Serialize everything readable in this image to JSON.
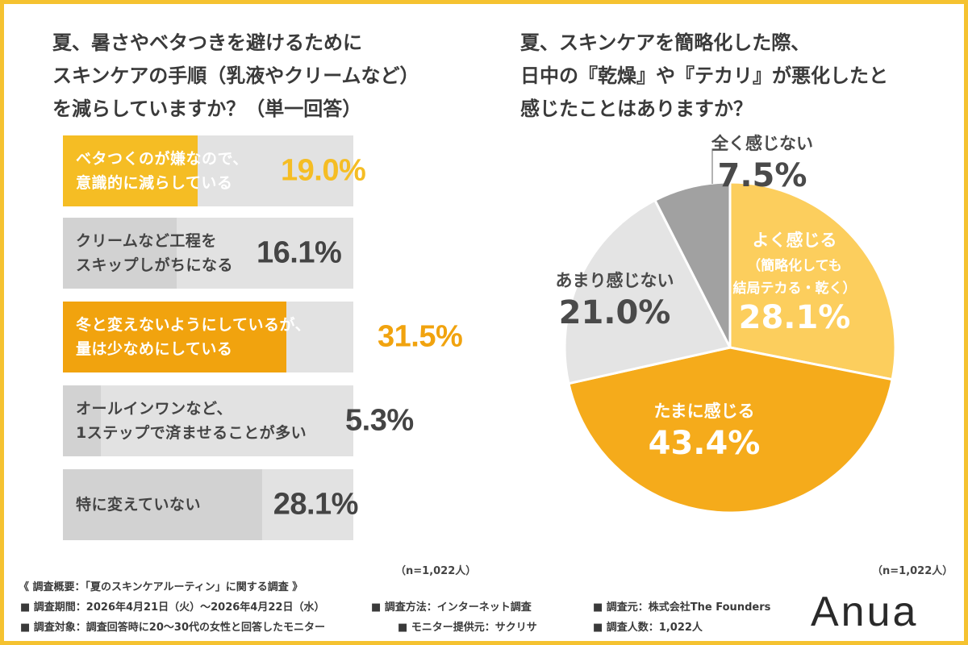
{
  "left_chart": {
    "title_lines": [
      "夏、暑さやベタつきを避けるために",
      "スキンケアの手順（乳液やクリームなど）",
      "を減らしていますか？（単一回答）"
    ],
    "n_note": "（n=1,022人）"
  },
  "right_chart": {
    "title_lines": [
      "夏、スキンケアを簡略化した際、",
      "日中の『乾燥』や『テカリ』が悪化したと",
      "感じたことはありますか？"
    ],
    "n_note": "（n=1,022人）"
  },
  "chart_data": [
    {
      "type": "bar",
      "orientation": "horizontal",
      "categories": [
        "ベタつくのが嫌なので、\n意識的に減らしている",
        "クリームなど工程を\nスキップしがちになる",
        "冬と変えないようにしているが、\n量は少なめにしている",
        "オールインワンなど、\n1ステップで済ませることが多い",
        "特に変えていない"
      ],
      "values": [
        19.0,
        16.1,
        31.5,
        5.3,
        28.1
      ],
      "value_labels": [
        "19.0%",
        "16.1%",
        "31.5%",
        "5.3%",
        "28.1%"
      ],
      "xlim": [
        0,
        41
      ],
      "colors": {
        "highlight": "#f5bd24",
        "highlight_strong": "#f1a30e",
        "normal": "#e2e2e2",
        "normal_text": "#444444"
      },
      "highlighted": [
        true,
        false,
        true,
        false,
        false
      ]
    },
    {
      "type": "pie",
      "start": "top",
      "direction": "clockwise",
      "slices": [
        {
          "label": "よく感じる",
          "sublabel_lines": [
            "（簡略化しても",
            "結局テカる・乾く）"
          ],
          "value": 28.1,
          "value_label": "28.1%",
          "color": "#fcce5d",
          "text_color": "#ffffff"
        },
        {
          "label": "たまに感じる",
          "sublabel_lines": [],
          "value": 43.4,
          "value_label": "43.4%",
          "color": "#f5ab1b",
          "text_color": "#ffffff"
        },
        {
          "label": "あまり感じない",
          "sublabel_lines": [],
          "value": 21.0,
          "value_label": "21.0%",
          "color": "#e4e4e4",
          "text_color": "#4a4a4a"
        },
        {
          "label": "全く感じない",
          "sublabel_lines": [],
          "value": 7.5,
          "value_label": "7.5%",
          "color": "#a1a1a1",
          "text_color": "#4a4a4a"
        }
      ]
    }
  ],
  "survey": {
    "heading": "《 調査概要：「夏のスキンケアルーティン」に関する調査 》",
    "period": "■ 調査期間：2026年4月21日（火）〜2026年4月22日（水）",
    "method": "■ 調査方法：インターネット調査",
    "organizer": "■ 調査元：株式会社The Founders",
    "target": "■ 調査対象：調査回答時に20〜30代の女性と回答したモニター",
    "provider": "■ モニター提供元：サクリサ",
    "count": "■ 調査人数：1,022人"
  },
  "brand": {
    "logo_text": "Anua"
  }
}
